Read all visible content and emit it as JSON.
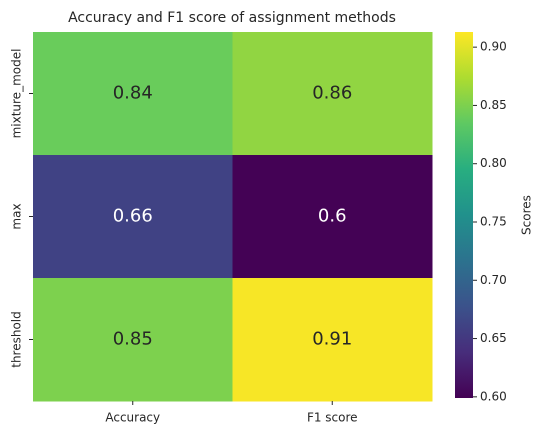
{
  "chart_data": {
    "type": "heatmap",
    "title": "Accuracy and F1 score of assignment methods",
    "x_categories": [
      "Accuracy",
      "F1 score"
    ],
    "y_categories": [
      "mixture_model",
      "max",
      "threshold"
    ],
    "values": [
      [
        0.84,
        0.86
      ],
      [
        0.66,
        0.6
      ],
      [
        0.85,
        0.91
      ]
    ],
    "colormap": "viridis",
    "colorbar_label": "Scores",
    "zlim": [
      0.599,
      0.913
    ],
    "zticks": [
      {
        "value": 0.6,
        "label": "0.60"
      },
      0.65,
      {
        "value": 0.7,
        "label": "0.70"
      },
      0.75,
      {
        "value": 0.8,
        "label": "0.80"
      },
      0.85,
      {
        "value": 0.9,
        "label": "0.90"
      }
    ]
  }
}
